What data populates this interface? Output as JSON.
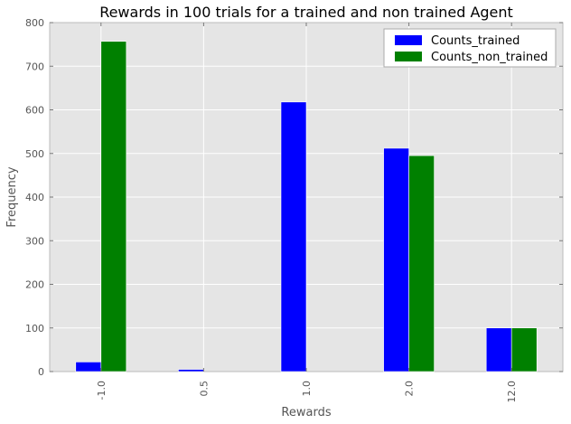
{
  "chart_data": {
    "type": "bar",
    "title": "Rewards in 100 trials for a trained and non trained Agent",
    "xlabel": "Rewards",
    "ylabel": "Frequency",
    "categories": [
      "-1.0",
      "0.5",
      "1.0",
      "2.0",
      "12.0"
    ],
    "series": [
      {
        "name": "Counts_trained",
        "color": "#0000ff",
        "values": [
          22,
          5,
          618,
          512,
          100
        ]
      },
      {
        "name": "Counts_non_trained",
        "color": "#008000",
        "values": [
          757,
          0,
          0,
          495,
          100
        ]
      }
    ],
    "ylim": [
      0,
      800
    ],
    "yticks": [
      0,
      100,
      200,
      300,
      400,
      500,
      600,
      700,
      800
    ],
    "grid": true,
    "legend_position": "top-right",
    "background": "#e5e5e5"
  }
}
